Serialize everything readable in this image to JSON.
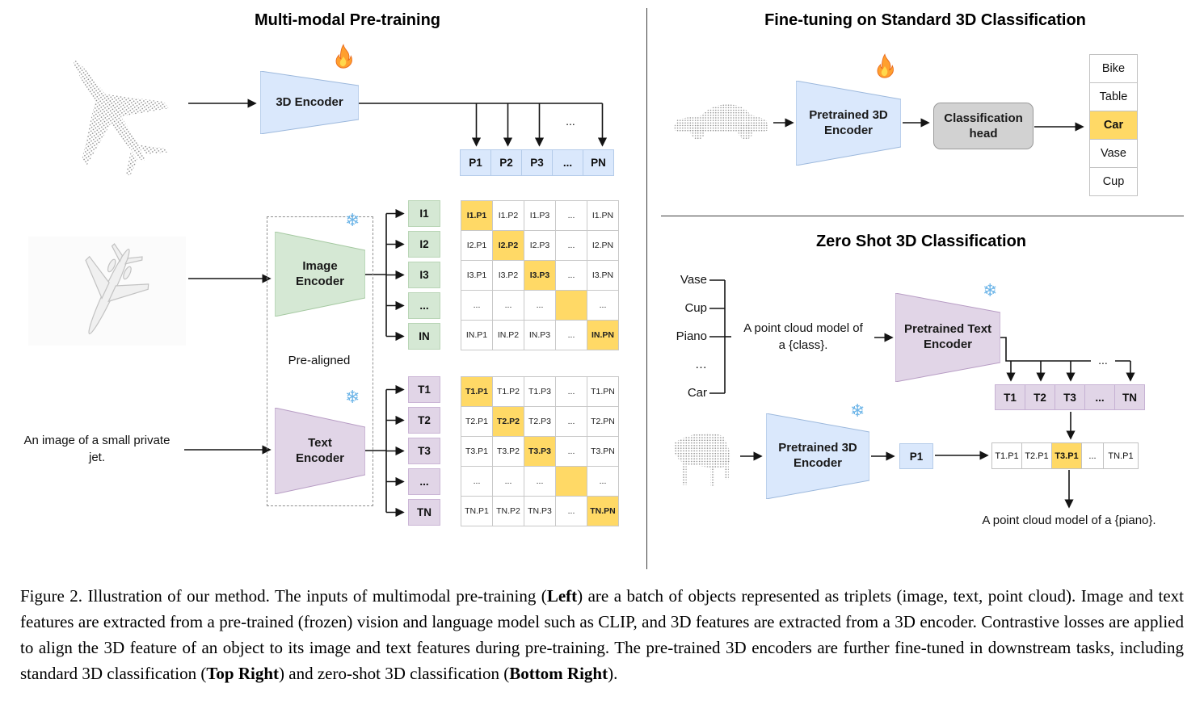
{
  "left": {
    "title": "Multi-modal Pre-training",
    "encoder3d_label": "3D Encoder",
    "image_encoder_label": "Image\nEncoder",
    "text_encoder_label": "Text\nEncoder",
    "prealigned_label": "Pre-aligned",
    "jet_caption": "An image of a small private jet.",
    "dots": "...",
    "p_row": [
      "P1",
      "P2",
      "P3",
      "...",
      "PN"
    ],
    "i_col": [
      "I1",
      "I2",
      "I3",
      "...",
      "IN"
    ],
    "t_col": [
      "T1",
      "T2",
      "T3",
      "...",
      "TN"
    ],
    "i_matrix": [
      [
        "I1.P1",
        "I1.P2",
        "I1.P3",
        "...",
        "I1.PN"
      ],
      [
        "I2.P1",
        "I2.P2",
        "I2.P3",
        "...",
        "I2.PN"
      ],
      [
        "I3.P1",
        "I3.P2",
        "I3.P3",
        "...",
        "I3.PN"
      ],
      [
        "...",
        "...",
        "...",
        "",
        "..."
      ],
      [
        "IN.P1",
        "IN.P2",
        "IN.P3",
        "...",
        "IN.PN"
      ]
    ],
    "t_matrix": [
      [
        "T1.P1",
        "T1.P2",
        "T1.P3",
        "...",
        "T1.PN"
      ],
      [
        "T2.P1",
        "T2.P2",
        "T2.P3",
        "...",
        "T2.PN"
      ],
      [
        "T3.P1",
        "T3.P2",
        "T3.P3",
        "...",
        "T3.PN"
      ],
      [
        "...",
        "...",
        "...",
        "",
        "..."
      ],
      [
        "TN.P1",
        "TN.P2",
        "TN.P3",
        "...",
        "TN.PN"
      ]
    ]
  },
  "fine_tuning": {
    "title": "Fine-tuning on Standard 3D Classification",
    "encoder_label": "Pretrained 3D\nEncoder",
    "head_label": "Classification\nhead",
    "classes": [
      "Bike",
      "Table",
      "Car",
      "Vase",
      "Cup"
    ],
    "highlight_index": 2
  },
  "zero_shot": {
    "title": "Zero Shot 3D Classification",
    "classes": [
      "Vase",
      "Cup",
      "Piano",
      "…",
      "Car"
    ],
    "prompt": "A point cloud model of\na {class}.",
    "text_encoder_label": "Pretrained Text\nEncoder",
    "encoder3d_label": "Pretrained 3D\nEncoder",
    "p1": "P1",
    "t_row": [
      "T1",
      "T2",
      "T3",
      "...",
      "TN"
    ],
    "sim_row": [
      "T1.P1",
      "T2.P1",
      "T3.P1",
      "...",
      "TN.P1"
    ],
    "sim_highlight_index": 2,
    "dots": "...",
    "result": "A point cloud model of a {piano}."
  },
  "icons": {
    "snowflake": "❄",
    "fire": "flame-icon"
  },
  "colors": {
    "highlight": "#FFD966",
    "blue": "#DAE8FC",
    "green": "#D5E8D4",
    "purple": "#E1D5E7",
    "head_gray": "#D2D2D2"
  },
  "caption": {
    "segments": [
      {
        "text": "Figure 2. Illustration of our method. The inputs of multimodal pre-training (",
        "bold": false
      },
      {
        "text": "Left",
        "bold": true
      },
      {
        "text": ") are a batch of objects represented as triplets (image, text, point cloud). Image and text features are extracted from a pre-trained (frozen) vision and language model such as CLIP, and 3D features are extracted from a 3D encoder. Contrastive losses are applied to align the 3D feature of an object to its image and text features during pre-training. The pre-trained 3D encoders are further fine-tuned in downstream tasks, including standard 3D classification (",
        "bold": false
      },
      {
        "text": "Top Right",
        "bold": true
      },
      {
        "text": ") and zero-shot 3D classification (",
        "bold": false
      },
      {
        "text": "Bottom Right",
        "bold": true
      },
      {
        "text": ").",
        "bold": false
      }
    ]
  }
}
